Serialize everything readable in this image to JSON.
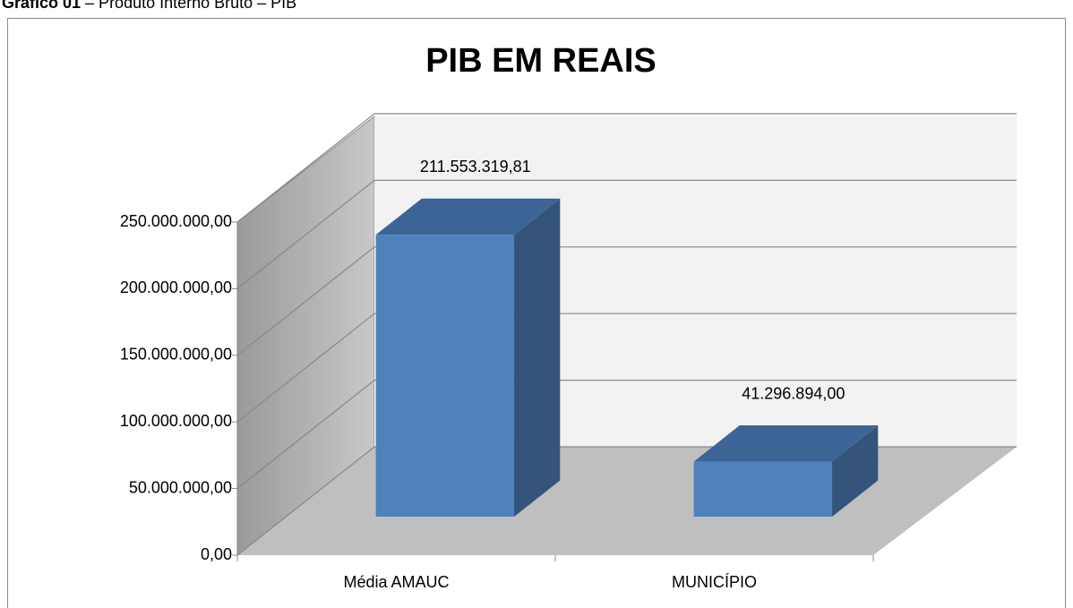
{
  "caption": {
    "label": "Gráfico 01",
    "text": " – Produto Interno Bruto – PIB"
  },
  "chart_data": {
    "type": "bar3d",
    "title": "PIB EM REAIS",
    "categories": [
      "Média AMAUC",
      "MUNICÍPIO"
    ],
    "values": [
      211553319.81,
      41296894.0
    ],
    "value_labels": [
      "211.553.319,81",
      "41.296.894,00"
    ],
    "color": "#4f81bd",
    "ylim": [
      0,
      250000000
    ],
    "yticks": [
      {
        "value": 0,
        "label": "0,00"
      },
      {
        "value": 50000000,
        "label": "50.000.000,00"
      },
      {
        "value": 100000000,
        "label": "100.000.000,00"
      },
      {
        "value": 150000000,
        "label": "150.000.000,00"
      },
      {
        "value": 200000000,
        "label": "200.000.000,00"
      },
      {
        "value": 250000000,
        "label": "250.000.000,00"
      }
    ],
    "grid": true
  }
}
